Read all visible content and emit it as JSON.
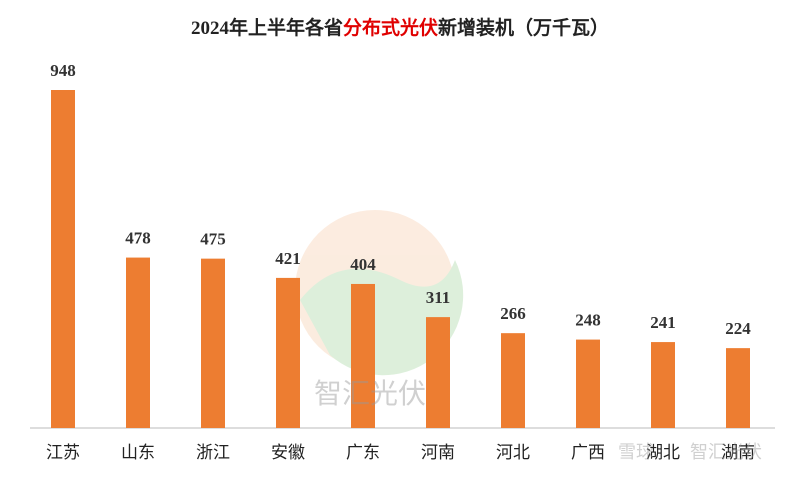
{
  "chart_data": {
    "type": "bar",
    "title_segments": [
      {
        "text": "2024年上半年各省",
        "color": "#222222"
      },
      {
        "text": "分布式光伏",
        "color": "#e00000"
      },
      {
        "text": "新增装机（万千瓦）",
        "color": "#222222"
      }
    ],
    "categories": [
      "江苏",
      "山东",
      "浙江",
      "安徽",
      "广东",
      "河南",
      "河北",
      "广西",
      "湖北",
      "湖南"
    ],
    "values": [
      948,
      478,
      475,
      421,
      404,
      311,
      266,
      248,
      241,
      224
    ],
    "color": "#ed7d31",
    "watermarks": [
      "智汇光伏",
      "雪球",
      "智汇光伏"
    ]
  }
}
